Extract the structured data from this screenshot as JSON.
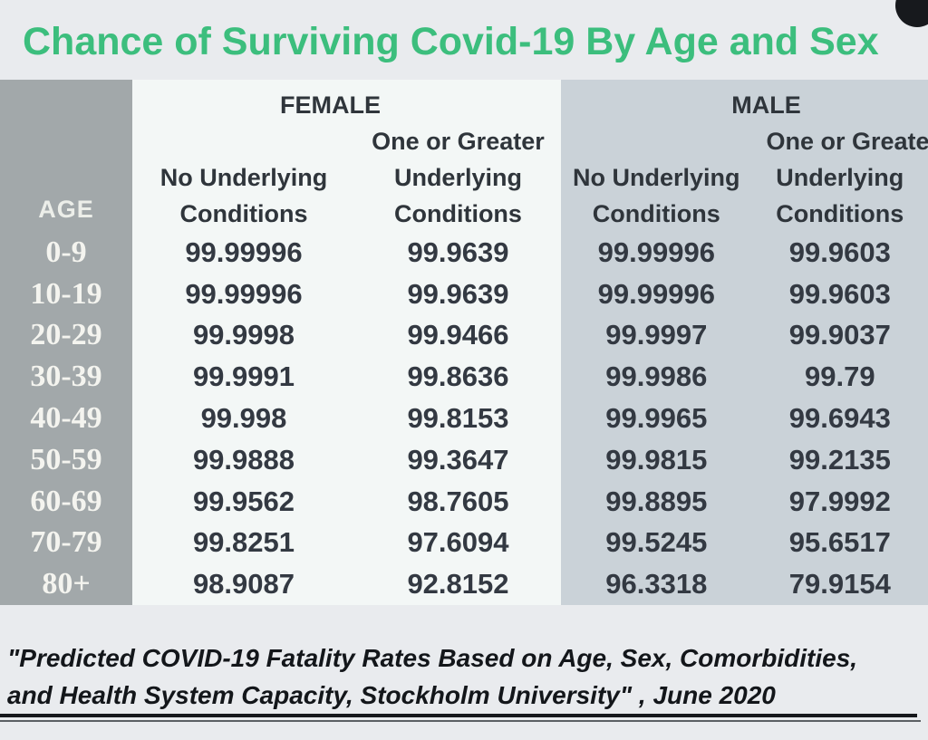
{
  "title": "Chance of Surviving Covid-19 By Age and Sex",
  "table": {
    "age_label": "AGE",
    "female": {
      "label": "FEMALE",
      "one_or_greater": "One or Greater",
      "col1_line1": "No Underlying",
      "col1_line2": "Conditions",
      "col2_line1": "Underlying",
      "col2_line2": "Conditions"
    },
    "male": {
      "label": "MALE",
      "one_or_greater": "One or Greater",
      "col1_line1": "No Underlying",
      "col1_line2": "Conditions",
      "col2_line1": "Underlying",
      "col2_line2": "Conditions"
    }
  },
  "chart_data": {
    "type": "table",
    "title": "Chance of Surviving Covid-19 By Age and Sex",
    "columns": [
      "AGE",
      "FEMALE - No Underlying Conditions",
      "FEMALE - One or Greater Underlying Conditions",
      "MALE - No Underlying Conditions",
      "MALE - One or Greater Underlying Conditions"
    ],
    "rows": [
      [
        "0-9",
        "99.99996",
        "99.9639",
        "99.99996",
        "99.9603"
      ],
      [
        "10-19",
        "99.99996",
        "99.9639",
        "99.99996",
        "99.9603"
      ],
      [
        "20-29",
        "99.9998",
        "99.9466",
        "99.9997",
        "99.9037"
      ],
      [
        "30-39",
        "99.9991",
        "99.8636",
        "99.9986",
        "99.79"
      ],
      [
        "40-49",
        "99.998",
        "99.8153",
        "99.9965",
        "99.6943"
      ],
      [
        "50-59",
        "99.9888",
        "99.3647",
        "99.9815",
        "99.2135"
      ],
      [
        "60-69",
        "99.9562",
        "98.7605",
        "99.8895",
        "97.9992"
      ],
      [
        "70-79",
        "99.8251",
        "97.6094",
        "99.5245",
        "95.6517"
      ],
      [
        "80+",
        "98.9087",
        "92.8152",
        "96.3318",
        "79.9154"
      ]
    ]
  },
  "footer": {
    "line1": "\"Predicted COVID-19 Fatality Rates Based on Age, Sex, Comorbidities,",
    "line2": "and Health System Capacity,  Stockholm University\" , June 2020"
  },
  "colors": {
    "title_green": "#3cbe7d",
    "page_bg": "#e9ebee",
    "age_column_bg": "#a2a8aa",
    "female_panel_bg": "#f3f7f6",
    "male_panel_bg": "#cad2d8",
    "text_dark": "#333942"
  }
}
